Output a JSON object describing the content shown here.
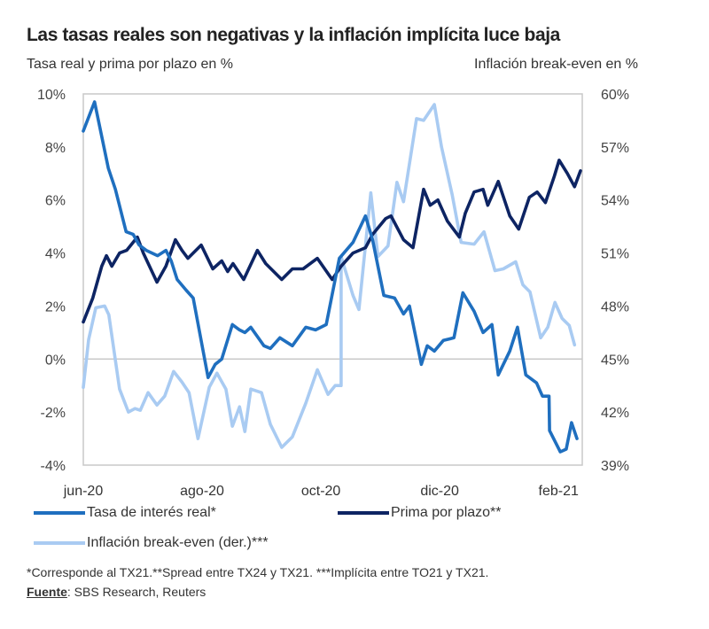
{
  "header": {
    "title": "Las tasas reales son negativas y la inflación implícita luce baja",
    "left_axis_title": "Tasa real y prima por plazo en %",
    "right_axis_title": "Inflación break-even en %"
  },
  "footnote": "*Corresponde al TX21.**Spread entre TX24 y TX21. ***Implícita entre TO21 y TX21.",
  "source": {
    "label": "Fuente",
    "text": ": SBS Research, Reuters"
  },
  "chart_data": {
    "type": "line",
    "title": "Las tasas reales son negativas y la inflación implícita luce baja",
    "xlabel": "",
    "ylabel": "Tasa real y prima por plazo en %",
    "y2label": "Inflación break-even en %",
    "x_unit": "months since jun-20",
    "x_ticks": [
      {
        "label": "jun-20",
        "x": 0
      },
      {
        "label": "ago-20",
        "x": 2
      },
      {
        "label": "oct-20",
        "x": 4
      },
      {
        "label": "dic-20",
        "x": 6
      },
      {
        "label": "feb-21",
        "x": 8
      }
    ],
    "xlim": [
      0,
      8.4
    ],
    "ylim": [
      -4,
      10
    ],
    "y_ticks": [
      -4,
      -2,
      0,
      2,
      4,
      6,
      8,
      10
    ],
    "y_tick_labels": [
      "-4%",
      "-2%",
      "0%",
      "2%",
      "4%",
      "6%",
      "8%",
      "10%"
    ],
    "y2lim": [
      39,
      60
    ],
    "y2_ticks": [
      39,
      42,
      45,
      48,
      51,
      54,
      57,
      60
    ],
    "y2_tick_labels": [
      "39%",
      "42%",
      "45%",
      "48%",
      "51%",
      "54%",
      "57%",
      "60%"
    ],
    "zero_line": true,
    "grid": false,
    "legend_position": "bottom",
    "series": [
      {
        "name": "Tasa de interés real*",
        "axis": "left",
        "color": "#1F6FBF",
        "x": [
          0,
          0.19,
          0.42,
          0.54,
          0.72,
          0.84,
          0.94,
          1.06,
          1.25,
          1.39,
          1.48,
          1.58,
          1.73,
          1.85,
          2.1,
          2.22,
          2.33,
          2.51,
          2.63,
          2.72,
          2.82,
          3.04,
          3.15,
          3.31,
          3.52,
          3.745,
          3.91,
          4.09,
          4.31,
          4.54,
          4.75,
          4.87,
          5.06,
          5.24,
          5.39,
          5.49,
          5.69,
          5.79,
          5.91,
          6.06,
          6.24,
          6.39,
          6.58,
          6.73,
          6.88,
          6.985,
          7.18,
          7.31,
          7.45,
          7.63,
          7.73,
          7.84,
          7.85,
          8.03,
          8.13,
          8.22,
          8.31,
          8.31
        ],
        "values": [
          8.6,
          9.7,
          7.2,
          6.4,
          4.8,
          4.7,
          4.3,
          4.1,
          3.9,
          4.1,
          3.7,
          3.0,
          2.6,
          2.3,
          -0.7,
          -0.2,
          0.0,
          1.3,
          1.1,
          1.0,
          1.2,
          0.5,
          0.4,
          0.8,
          0.5,
          1.2,
          1.1,
          1.3,
          3.8,
          4.4,
          5.4,
          4.5,
          2.4,
          2.3,
          1.7,
          2.0,
          -0.2,
          0.5,
          0.3,
          0.7,
          0.8,
          2.5,
          1.8,
          1.0,
          1.3,
          -0.6,
          0.3,
          1.2,
          -0.6,
          -0.9,
          -1.4,
          -1.4,
          -2.7,
          -3.5,
          -3.4,
          -2.4,
          -3.0,
          -3.0
        ]
      },
      {
        "name": "Prima por plazo**",
        "axis": "left",
        "color": "#0D2463",
        "x": [
          0,
          0.16,
          0.31,
          0.39,
          0.48,
          0.61,
          0.73,
          0.91,
          1.01,
          1.24,
          1.39,
          1.55,
          1.66,
          1.76,
          1.985,
          2.18,
          2.33,
          2.43,
          2.52,
          2.7,
          2.93,
          3.07,
          3.34,
          3.52,
          3.7,
          3.94,
          4.19,
          4.34,
          4.54,
          4.75,
          4.87,
          5.09,
          5.18,
          5.39,
          5.55,
          5.73,
          5.84,
          5.97,
          6.13,
          6.33,
          6.43,
          6.58,
          6.73,
          6.81,
          6.985,
          7.18,
          7.33,
          7.51,
          7.64,
          7.78,
          7.93,
          8.01,
          8.15,
          8.27,
          8.37
        ],
        "values": [
          1.4,
          2.3,
          3.5,
          3.9,
          3.5,
          4.0,
          4.1,
          4.6,
          4.0,
          2.9,
          3.5,
          4.5,
          4.1,
          3.8,
          4.3,
          3.4,
          3.7,
          3.3,
          3.6,
          3.0,
          4.1,
          3.6,
          3.0,
          3.4,
          3.4,
          3.8,
          3.0,
          3.5,
          4.0,
          4.2,
          4.7,
          5.3,
          5.4,
          4.5,
          4.2,
          6.4,
          5.8,
          6.0,
          5.2,
          4.6,
          5.5,
          6.3,
          6.4,
          5.8,
          6.7,
          5.4,
          4.9,
          6.1,
          6.3,
          5.9,
          6.9,
          7.5,
          7.0,
          6.5,
          7.1
        ]
      },
      {
        "name": "Inflación break-even (der.)***",
        "axis": "right",
        "color": "#A9CBF2",
        "x": [
          0,
          0.09,
          0.21,
          0.36,
          0.43,
          0.61,
          0.76,
          0.87,
          0.96,
          1.09,
          1.24,
          1.37,
          1.52,
          1.66,
          1.78,
          1.93,
          2.12,
          2.25,
          2.4,
          2.51,
          2.63,
          2.72,
          2.82,
          3.0,
          3.15,
          3.34,
          3.52,
          3.745,
          3.94,
          4.12,
          4.24,
          4.34,
          4.34,
          4.54,
          4.64,
          4.84,
          4.96,
          5.13,
          5.28,
          5.39,
          5.61,
          5.73,
          5.91,
          6.03,
          6.21,
          6.36,
          6.58,
          6.745,
          6.93,
          7.07,
          7.28,
          7.4,
          7.52,
          7.7,
          7.82,
          7.94,
          8.06,
          8.18,
          8.27
        ],
        "values": [
          43.4,
          46.1,
          47.9,
          48.0,
          47.5,
          43.3,
          42.0,
          42.2,
          42.1,
          43.1,
          42.4,
          42.9,
          44.3,
          43.7,
          43.1,
          40.5,
          43.4,
          44.2,
          43.3,
          41.2,
          42.3,
          40.9,
          43.3,
          43.1,
          41.3,
          40.0,
          40.6,
          42.5,
          44.4,
          43.0,
          43.5,
          43.5,
          50.8,
          48.6,
          47.8,
          54.4,
          50.8,
          51.4,
          55.0,
          53.9,
          58.6,
          58.5,
          59.4,
          57.0,
          54.3,
          51.6,
          51.5,
          52.2,
          50.0,
          50.1,
          50.5,
          49.2,
          48.8,
          46.2,
          46.8,
          48.2,
          47.3,
          46.9,
          45.8
        ]
      }
    ]
  }
}
